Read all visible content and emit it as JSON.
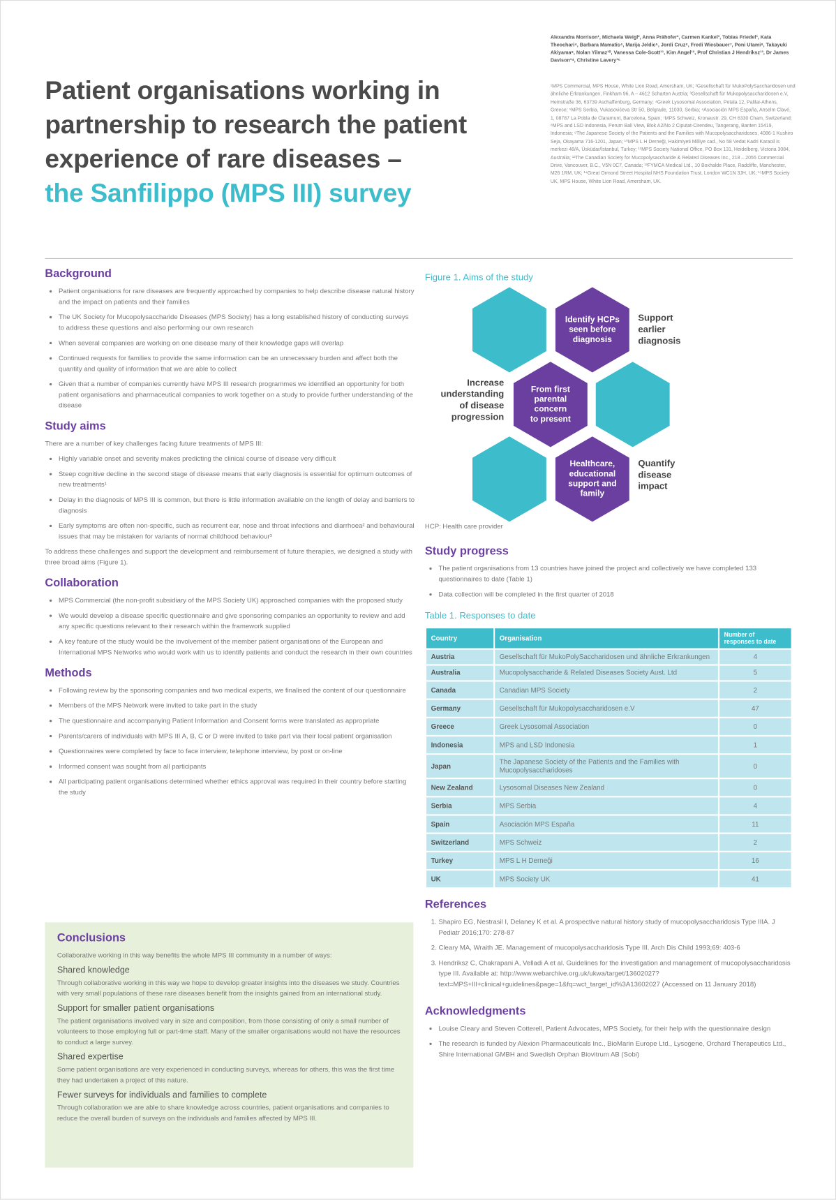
{
  "header": {
    "title_lines": [
      "Patient organisations working in",
      "partnership to research the patient",
      "experience of rare diseases –",
      "the Sanfilippo (MPS III) survey"
    ],
    "authors": "Alexandra Morrison¹, Michaela Weigl², Anna Prähofer², Carmen Kankel³, Tobias Friedel³, Kata Theochari⁴, Barbara Mamatis⁴, Marija Jeldic⁵, Jordi Cruz⁶, Fredi Wiesbauer⁷, Poni Utami⁸, Takayuki Akiyama⁹, Nolan Yilmaz¹⁰, Vanessa Cole-Scott¹¹, Kim Angel¹², Prof Christian J Hendriksz¹³, Dr James Davison¹⁴, Christine Lavery¹⁵",
    "affiliations": "¹MPS Commercial, MPS House, White Lion Road, Amersham, UK; ²Gesellschaft für MukoPolySaccharidosen und ähnliche Erkrankungen, Finkham 96, A – 4612 Scharten Austria; ³Gesellschaft für Mukopolysaccharidosen e.V, Heinstraße 36, 63739 Aschaffenburg, Germany; ⁴Greek Lysosomal Association, Petala 12, Palilai-Athens, Greece; ⁵MPS Serbia, Vukasovićeva Str 50, Belgrade, 11030, Serbia; ⁶Asociación MPS España, Anselm Clavé, 1, 08787 La Pobla de Claramunt, Barcelona, Spain; ⁷MPS Schweiz, Kronaustr. 29, CH 6330 Cham, Switzerland; ⁸MPS and LSD Indonesia, Perum Bali View, Blok A2/No 2 Ciputat-Cirendeu, Tangerang, Banten 15419, Indonesia; ⁹The Japanese Society of the Patients and the Families with Mucopolysaccharidoses, 4086-1 Kushiro Seja, Okayama 716-1201, Japan; ¹⁰MPS L H Derneği, Hakimiyeti Milliye cad., No 58 Vedat Kadri Karaoil is merkezi 48/A, Üsküdar/İstanbul, Turkey; ¹¹MPS Society National Office, PO Box 131, Heidelberg, Victoria 3084, Australia; ¹²The Canadian Society for Mucopolysaccharide & Related Diseases Inc., 218 – 2055 Commercial Drive, Vancouver, B.C., V5N 0C7, Canada; ¹³FYMCA Medical Ltd., 10 Boxhalde Place, Radcliffe, Manchester, M26 1RM, UK; ¹⁴Great Ormond Street Hospital NHS Foundation Trust, London WC1N 3JH, UK; ¹⁵MPS Society UK, MPS House, White Lion Road, Amersham, UK."
  },
  "background": {
    "heading": "Background",
    "bullets": [
      "Patient organisations for rare diseases are frequently approached by companies to help describe disease natural history and the impact on patients and their families",
      "The UK Society for Mucopolysaccharide Diseases (MPS Society) has a long established history of conducting surveys to address these questions and also performing our own research",
      "When several companies are working on one disease many of their knowledge gaps will overlap",
      "Continued requests for families to provide the same information can be an unnecessary burden and affect both the quantity and quality of information that we are able to collect",
      "Given that a number of companies currently have MPS III research programmes we identified an opportunity for both patient organisations and pharmaceutical companies to work together on a study to provide further understanding of the disease"
    ]
  },
  "study_aims": {
    "heading": "Study aims",
    "intro": "There are a number of key challenges facing future treatments of MPS III:",
    "bullets": [
      "Highly variable onset and severity makes predicting the clinical course of disease very difficult",
      "Steep cognitive decline in the second stage of disease means that early diagnosis is essential for optimum outcomes of new treatments¹",
      "Delay in the diagnosis of MPS III is common, but there is little information available on the length of delay and barriers to diagnosis",
      "Early symptoms are often non-specific, such as recurrent ear, nose and throat infections and diarrhoea² and behavioural issues that may be mistaken for variants of normal childhood behaviour³"
    ],
    "outro": "To address these challenges and support the development and reimbursement of future therapies, we designed a study with three broad aims (Figure 1)."
  },
  "collaboration": {
    "heading": "Collaboration",
    "bullets": [
      "MPS Commercial (the non-profit subsidiary of the MPS Society UK) approached companies with the proposed study",
      "We would develop a disease specific questionnaire and give sponsoring companies an opportunity to review and add any specific questions relevant to their research within the framework supplied",
      "A key feature of the study would be the involvement of the member patient organisations of the European and International MPS Networks who would work with us to identify patients and conduct the research in their own countries"
    ]
  },
  "methods": {
    "heading": "Methods",
    "bullets": [
      "Following review by the sponsoring companies and two medical experts, we finalised the content of our questionnaire",
      "Members of the MPS Network were invited to take part in the study",
      "The questionnaire and accompanying Patient Information and Consent forms were translated as appropriate",
      "Parents/carers of individuals with MPS III A, B, C or D were invited to take part via their local patient organisation",
      "Questionnaires were completed by face to face interview, telephone interview, by post or on-line",
      "Informed consent was sought from all participants",
      "All participating patient organisations determined whether ethics approval was required in their country before starting the study"
    ]
  },
  "conclusions": {
    "heading": "Conclusions",
    "intro": "Collaborative working in this way benefits the whole MPS III community in a number of ways:",
    "items": [
      {
        "title": "Shared knowledge",
        "text": "Through collaborative working in this way we hope to develop greater insights into the diseases we study. Countries with very small populations of these rare diseases benefit from the insights gained from an international study."
      },
      {
        "title": "Support for smaller patient organisations",
        "text": "The patient organisations involved vary in size and composition, from those consisting of only a small number of volunteers to those employing full or part-time staff. Many of the smaller organisations would not have the resources to conduct a large survey."
      },
      {
        "title": "Shared expertise",
        "text": "Some patient organisations are very experienced in conducting surveys, whereas for others, this was the first time they had undertaken a project of this nature."
      },
      {
        "title": "Fewer surveys for individuals and families to complete",
        "text": "Through collaboration we are able to share knowledge across countries, patient organisations and companies to reduce the overall burden of surveys on the individuals and families affected by MPS III."
      }
    ]
  },
  "figure": {
    "title": "Figure 1. Aims of the study",
    "hexagons": [
      {
        "lines": [
          "Identify HCPs",
          "seen before",
          "diagnosis"
        ]
      },
      {
        "lines": [
          "From first",
          "parental",
          "concern",
          "to present"
        ]
      },
      {
        "lines": [
          "Healthcare,",
          "educational",
          "support and",
          "family"
        ]
      }
    ],
    "labels": [
      {
        "lines": [
          "Support",
          "earlier",
          "diagnosis"
        ]
      },
      {
        "lines": [
          "Increase",
          "understanding",
          "of disease",
          "progression"
        ]
      },
      {
        "lines": [
          "Quantify",
          "disease",
          "impact"
        ]
      }
    ],
    "note": "HCP: Health care provider"
  },
  "study_progress": {
    "heading": "Study progress",
    "bullets": [
      "The patient organisations from 13 countries have joined the project and collectively we have completed 133 questionnaires to date (Table 1)",
      "Data collection will be completed in the first quarter of 2018"
    ]
  },
  "table": {
    "title": "Table 1.  Responses to date",
    "columns": [
      "Country",
      "Organisation",
      "Number of responses to date"
    ],
    "rows": [
      [
        "Austria",
        "Gesellschaft für MukoPolySaccharidosen und ähnliche Erkrankungen",
        4
      ],
      [
        "Australia",
        "Mucopolysaccharide & Related Diseases Society Aust. Ltd",
        5
      ],
      [
        "Canada",
        "Canadian MPS Society",
        2
      ],
      [
        "Germany",
        "Gesellschaft für Mukopolysaccharidosen e.V",
        47
      ],
      [
        "Greece",
        "Greek Lysosomal Association",
        0
      ],
      [
        "Indonesia",
        "MPS and LSD Indonesia",
        1
      ],
      [
        "Japan",
        "The Japanese Society of the Patients and the Families with Mucopolysaccharidoses",
        0
      ],
      [
        "New Zealand",
        "Lysosomal Diseases New Zealand",
        0
      ],
      [
        "Serbia",
        "MPS Serbia",
        4
      ],
      [
        "Spain",
        "Asociación MPS España",
        11
      ],
      [
        "Switzerland",
        "MPS Schweiz",
        2
      ],
      [
        "Turkey",
        "MPS L H Derneği",
        16
      ],
      [
        "UK",
        "MPS Society UK",
        41
      ]
    ]
  },
  "references": {
    "heading": "References",
    "items": [
      "Shapiro EG, Nestrasil I, Delaney K et al. A prospective natural history study of mucopolysaccharidosis Type IIIA. J Pediatr 2016;170: 278-87",
      "Cleary MA, Wraith JE. Management of mucopolysaccharidosis Type III. Arch Dis Child 1993;69: 403-6",
      "Hendriksz C, Chakrapani A, Velladi A et al. Guidelines for the investigation and management of mucopolysaccharidosis type III. Available at: http://www.webarchive.org.uk/ukwa/target/13602027?text=MPS+III+clinical+guidelines&page=1&fq=wct_target_id%3A13602027 (Accessed on 11 January 2018)"
    ]
  },
  "acknowledgments": {
    "heading": "Acknowledgments",
    "bullets": [
      "Louise Cleary and Steven Cotterell, Patient Advocates, MPS Society, for their help with the questionnaire design",
      "The research is funded by Alexion Pharmaceuticals Inc., BioMarin Europe Ltd., Lysogene, Orchard Therapeutics Ltd., Shire International GMBH and Swedish Orphan Biovitrum AB (Sobi)"
    ]
  }
}
